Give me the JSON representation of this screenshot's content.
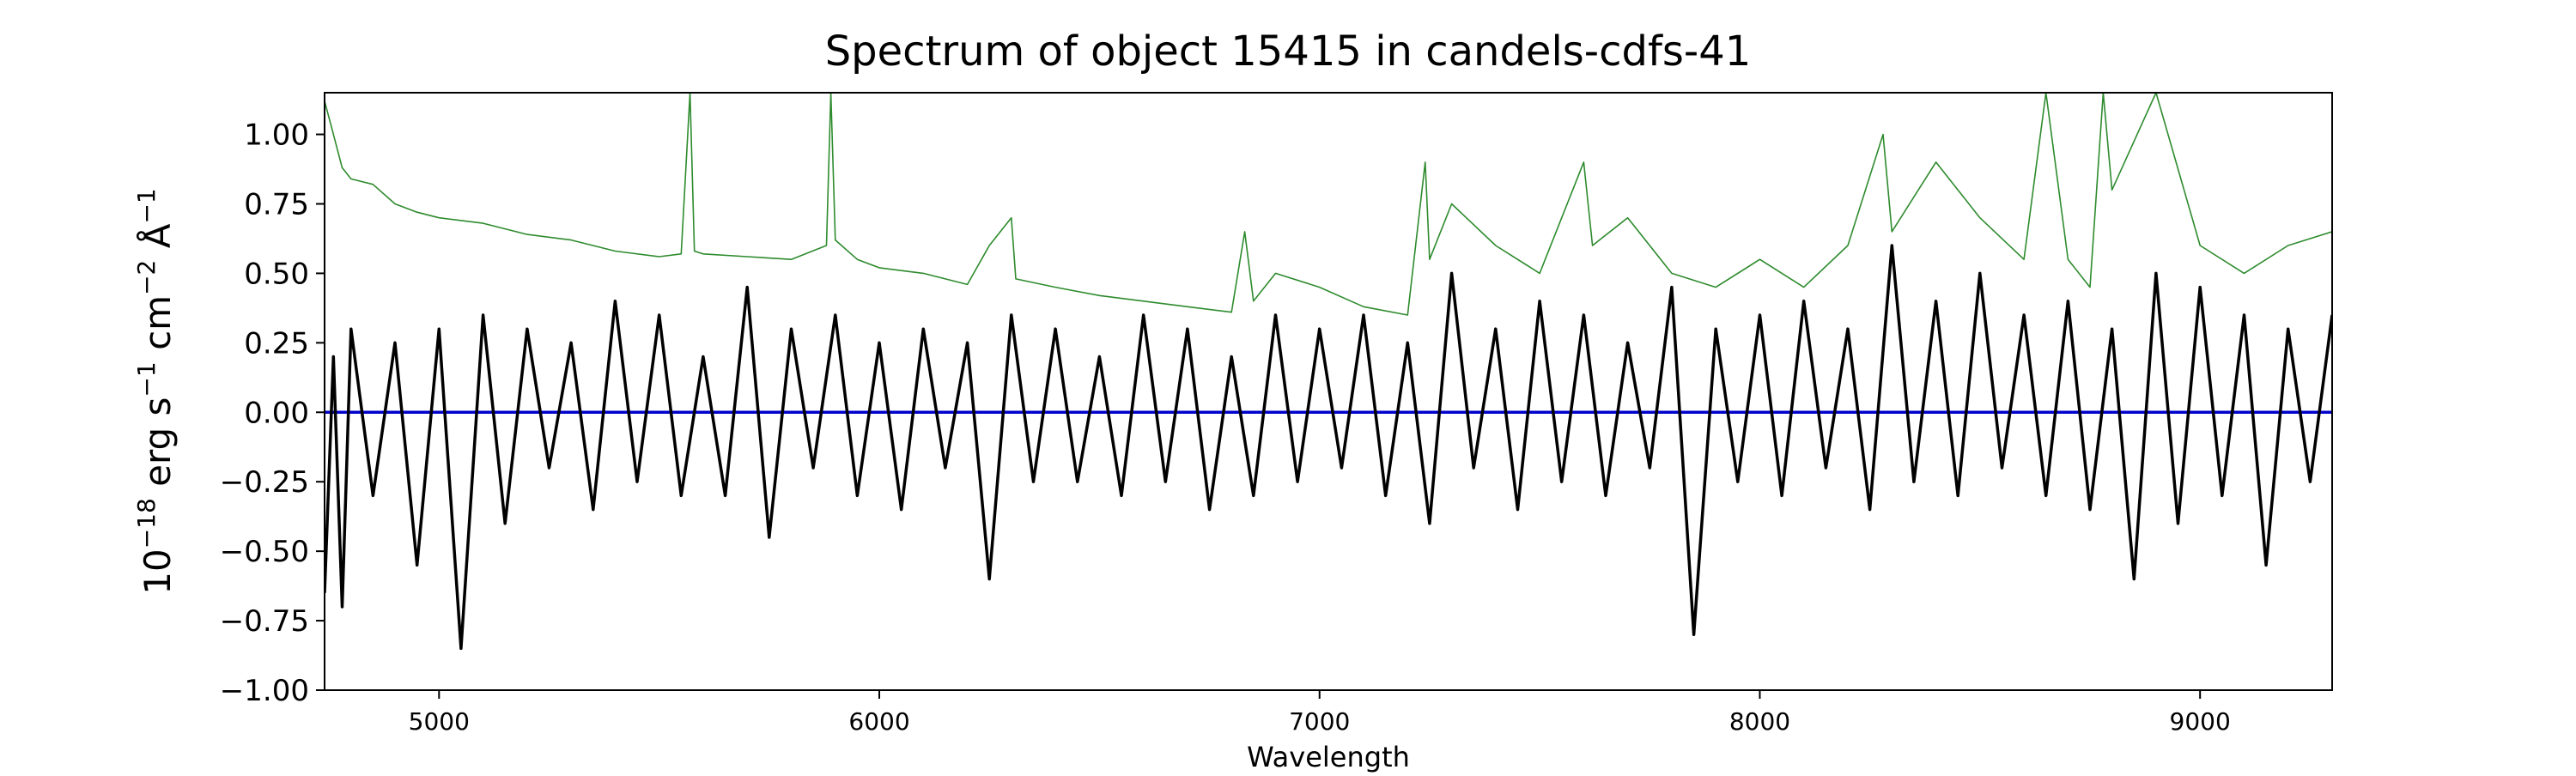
{
  "chart_data": {
    "type": "line",
    "title": "Spectrum of object 15415 in candels-cdfs-41",
    "xlabel": "Wavelength",
    "ylabel_parts": {
      "base": "10",
      "exp1": "−18",
      "t1": " erg s",
      "exp2": "−1",
      "t2": " cm",
      "exp3": "−2",
      "t3": " Å",
      "exp4": "−1"
    },
    "xlim": [
      4740,
      9300
    ],
    "ylim": [
      -1.0,
      1.15
    ],
    "xticks": [
      {
        "value": 5000,
        "label": "5000"
      },
      {
        "value": 6000,
        "label": "6000"
      },
      {
        "value": 7000,
        "label": "7000"
      },
      {
        "value": 8000,
        "label": "8000"
      },
      {
        "value": 9000,
        "label": "9000"
      }
    ],
    "yticks": [
      {
        "value": 1.0,
        "label": "1.00"
      },
      {
        "value": 0.75,
        "label": "0.75"
      },
      {
        "value": 0.5,
        "label": "0.50"
      },
      {
        "value": 0.25,
        "label": "0.25"
      },
      {
        "value": 0.0,
        "label": "0.00"
      },
      {
        "value": -0.25,
        "label": "−0.25"
      },
      {
        "value": -0.5,
        "label": "−0.50"
      },
      {
        "value": -0.75,
        "label": "−0.75"
      },
      {
        "value": -1.0,
        "label": "−1.00"
      }
    ],
    "grid": false,
    "colors": {
      "flux": "#000000",
      "error": "#2e8b2e",
      "zero": "#0000cc"
    },
    "series": [
      {
        "x": [
          4740,
          4760,
          4780,
          4800,
          4850,
          4900,
          4950,
          5000,
          5050,
          5100,
          5150,
          5200,
          5250,
          5300,
          5350,
          5400,
          5450,
          5500,
          5550,
          5600,
          5650,
          5700,
          5750,
          5800,
          5850,
          5900,
          5950,
          6000,
          6050,
          6100,
          6150,
          6200,
          6250,
          6300,
          6350,
          6400,
          6450,
          6500,
          6550,
          6600,
          6650,
          6700,
          6750,
          6800,
          6850,
          6900,
          6950,
          7000,
          7050,
          7100,
          7150,
          7200,
          7250,
          7300,
          7350,
          7400,
          7450,
          7500,
          7550,
          7600,
          7650,
          7700,
          7750,
          7800,
          7850,
          7900,
          7950,
          8000,
          8050,
          8100,
          8150,
          8200,
          8250,
          8300,
          8350,
          8400,
          8450,
          8500,
          8550,
          8600,
          8650,
          8700,
          8750,
          8800,
          8850,
          8900,
          8950,
          9000,
          9050,
          9100,
          9150,
          9200,
          9250,
          9300
        ],
        "y": [
          -0.65,
          0.2,
          -0.7,
          0.3,
          -0.3,
          0.25,
          -0.55,
          0.3,
          -0.85,
          0.35,
          -0.4,
          0.3,
          -0.2,
          0.25,
          -0.35,
          0.4,
          -0.25,
          0.35,
          -0.3,
          0.2,
          -0.3,
          0.45,
          -0.45,
          0.3,
          -0.2,
          0.35,
          -0.3,
          0.25,
          -0.35,
          0.3,
          -0.2,
          0.25,
          -0.6,
          0.35,
          -0.25,
          0.3,
          -0.25,
          0.2,
          -0.3,
          0.35,
          -0.25,
          0.3,
          -0.35,
          0.2,
          -0.3,
          0.35,
          -0.25,
          0.3,
          -0.2,
          0.35,
          -0.3,
          0.25,
          -0.4,
          0.5,
          -0.2,
          0.3,
          -0.35,
          0.4,
          -0.25,
          0.35,
          -0.3,
          0.25,
          -0.2,
          0.45,
          -0.8,
          0.3,
          -0.25,
          0.35,
          -0.3,
          0.4,
          -0.2,
          0.3,
          -0.35,
          0.6,
          -0.25,
          0.4,
          -0.3,
          0.5,
          -0.2,
          0.35,
          -0.3,
          0.4,
          -0.35,
          0.3,
          -0.6,
          0.5,
          -0.4,
          0.45,
          -0.3,
          0.35,
          -0.55,
          0.3,
          -0.25,
          0.35
        ]
      },
      {
        "x": [
          4740,
          4760,
          4780,
          4800,
          4850,
          4900,
          4950,
          5000,
          5100,
          5200,
          5300,
          5400,
          5500,
          5550,
          5570,
          5580,
          5600,
          5700,
          5800,
          5880,
          5890,
          5900,
          5950,
          6000,
          6100,
          6200,
          6250,
          6300,
          6310,
          6400,
          6500,
          6600,
          6700,
          6800,
          6830,
          6850,
          6900,
          7000,
          7100,
          7200,
          7240,
          7250,
          7300,
          7400,
          7500,
          7600,
          7620,
          7700,
          7800,
          7900,
          8000,
          8100,
          8200,
          8280,
          8300,
          8400,
          8500,
          8600,
          8650,
          8700,
          8750,
          8780,
          8800,
          8900,
          9000,
          9100,
          9200,
          9300
        ],
        "y": [
          1.12,
          1.0,
          0.88,
          0.84,
          0.82,
          0.75,
          0.72,
          0.7,
          0.68,
          0.64,
          0.62,
          0.58,
          0.56,
          0.57,
          1.15,
          0.58,
          0.57,
          0.56,
          0.55,
          0.6,
          1.15,
          0.62,
          0.55,
          0.52,
          0.5,
          0.46,
          0.6,
          0.7,
          0.48,
          0.45,
          0.42,
          0.4,
          0.38,
          0.36,
          0.65,
          0.4,
          0.5,
          0.45,
          0.38,
          0.35,
          0.9,
          0.55,
          0.75,
          0.6,
          0.5,
          0.9,
          0.6,
          0.7,
          0.5,
          0.45,
          0.55,
          0.45,
          0.6,
          1.0,
          0.65,
          0.9,
          0.7,
          0.55,
          1.15,
          0.55,
          0.45,
          1.15,
          0.8,
          1.15,
          0.6,
          0.5,
          0.6,
          0.65
        ]
      },
      {
        "x": [
          4740,
          9300
        ],
        "y": [
          0,
          0
        ]
      }
    ]
  }
}
